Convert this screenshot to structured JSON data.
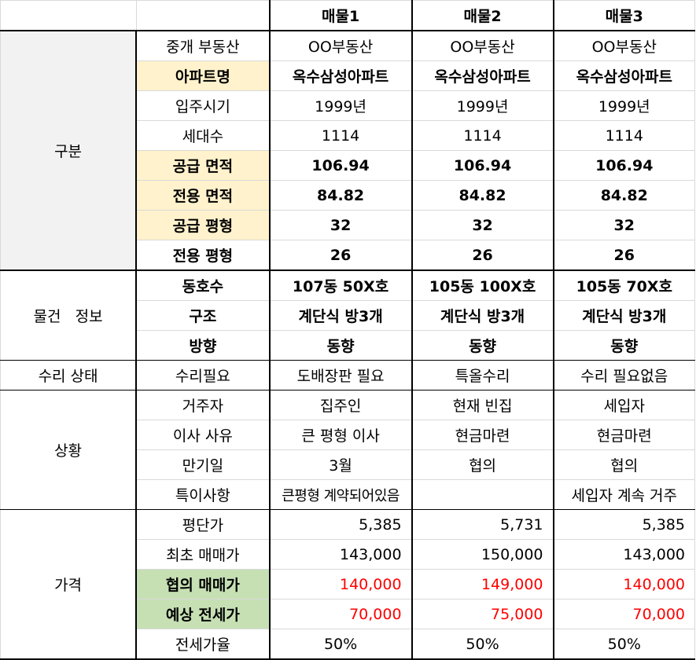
{
  "header": [
    "",
    "",
    "매물1",
    "매물2",
    "매물3"
  ],
  "sections": [
    {
      "name": "구분",
      "rows": [
        {
          "label": "중개 부동산",
          "values": [
            "OO부동산",
            "OO부동산",
            "OO부동산"
          ],
          "bold": false,
          "label_bg": ""
        },
        {
          "label": "아파트명",
          "values": [
            "옥수삼성아파트",
            "옥수삼성아파트",
            "옥수삼성아파트"
          ],
          "bold": true,
          "label_bg": "yellow"
        },
        {
          "label": "입주시기",
          "values": [
            "1999년",
            "1999년",
            "1999년"
          ],
          "bold": false,
          "label_bg": ""
        },
        {
          "label": "세대수",
          "values": [
            "1114",
            "1114",
            "1114"
          ],
          "bold": false,
          "label_bg": ""
        },
        {
          "label": "공급 면적",
          "values": [
            "106.94",
            "106.94",
            "106.94"
          ],
          "bold": true,
          "label_bg": "yellow"
        },
        {
          "label": "전용 면적",
          "values": [
            "84.82",
            "84.82",
            "84.82"
          ],
          "bold": true,
          "label_bg": "yellow"
        },
        {
          "label": "공급 평형",
          "values": [
            "32",
            "32",
            "32"
          ],
          "bold": true,
          "label_bg": "yellow"
        },
        {
          "label": "전용 평형",
          "values": [
            "26",
            "26",
            "26"
          ],
          "bold": true,
          "label_bg": ""
        }
      ]
    },
    {
      "name": "물건   정보",
      "rows": [
        {
          "label": "동호수",
          "values": [
            "107동 50X호",
            "105동 100X호",
            "105동 70X호"
          ],
          "bold": true
        },
        {
          "label": "구조",
          "values": [
            "계단식 방3개",
            "계단식 방3개",
            "계단식 방3개"
          ],
          "bold": true
        },
        {
          "label": "방향",
          "values": [
            "동향",
            "동향",
            "동향"
          ],
          "bold": true
        }
      ]
    },
    {
      "name": "수리 상태",
      "rows": [
        {
          "label": "수리필요",
          "values": [
            "도배장판 필요",
            "특올수리",
            "수리 필요없음"
          ],
          "bold": false
        }
      ]
    },
    {
      "name": "상황",
      "rows": [
        {
          "label": "거주자",
          "values": [
            "집주인",
            "현재 빈집",
            "세입자"
          ],
          "bold": false
        },
        {
          "label": "이사 사유",
          "values": [
            "큰 평형 이사",
            "현금마련",
            "현금마련"
          ],
          "bold": false
        },
        {
          "label": "만기일",
          "values": [
            "3월",
            "협의",
            "협의"
          ],
          "bold": false
        },
        {
          "label": "특이사항",
          "values": [
            "큰평형 계약되어있음",
            "",
            "세입자 계속 거주"
          ],
          "bold": false
        }
      ]
    },
    {
      "name": "가격",
      "rows": [
        {
          "label": "평단가",
          "values": [
            "5,385",
            "5,731",
            "5,385"
          ],
          "bold": false
        },
        {
          "label": "최초 매매가",
          "values": [
            "143,000",
            "150,000",
            "143,000"
          ],
          "bold": false
        },
        {
          "label": "협의 매매가",
          "values": [
            "140,000",
            "149,000",
            "140,000"
          ],
          "bold": true
        },
        {
          "label": "예상 전세가",
          "values": [
            "70,000",
            "75,000",
            "70,000"
          ],
          "bold": true
        },
        {
          "label": "전세가율",
          "values": [
            "50%",
            "50%",
            "50%"
          ],
          "bold": false
        }
      ]
    }
  ],
  "colors": {
    "label_highlight_yellow": "#fff2cc",
    "label_highlight_green": "#c6e0b4",
    "category_gray": "#f2f2f2",
    "price_red": "#ff0000"
  }
}
